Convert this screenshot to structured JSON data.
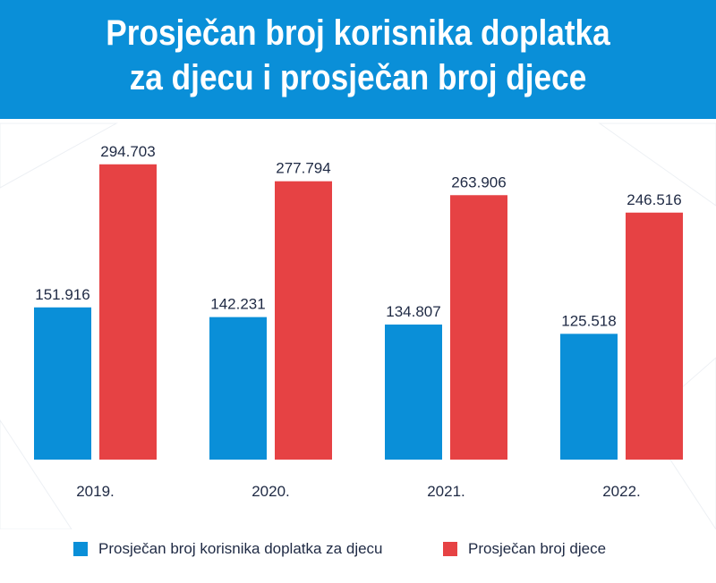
{
  "header": {
    "title_line1": "Prosječan broj korisnika doplatka",
    "title_line2": "za djecu i prosječan broj djece"
  },
  "colors": {
    "header_bg": "#0a8fd8",
    "series_blue": "#0a8fd8",
    "series_red": "#e64244",
    "label_text": "#1f2a44"
  },
  "chart_data": {
    "type": "bar",
    "categories": [
      "2019.",
      "2020.",
      "2021.",
      "2022."
    ],
    "series": [
      {
        "name": "Prosječan broj korisnika doplatka za djecu",
        "values": [
          151916,
          142231,
          134807,
          125518
        ],
        "labels": [
          "151.916",
          "142.231",
          "134.807",
          "125.518"
        ],
        "color": "#0a8fd8"
      },
      {
        "name": "Prosječan broj djece",
        "values": [
          294703,
          277794,
          263906,
          246516
        ],
        "labels": [
          "294.703",
          "277.794",
          "263.906",
          "246.516"
        ],
        "color": "#e64244"
      }
    ],
    "ylim": [
      0,
      340000
    ],
    "grid": false,
    "legend_position": "bottom"
  }
}
